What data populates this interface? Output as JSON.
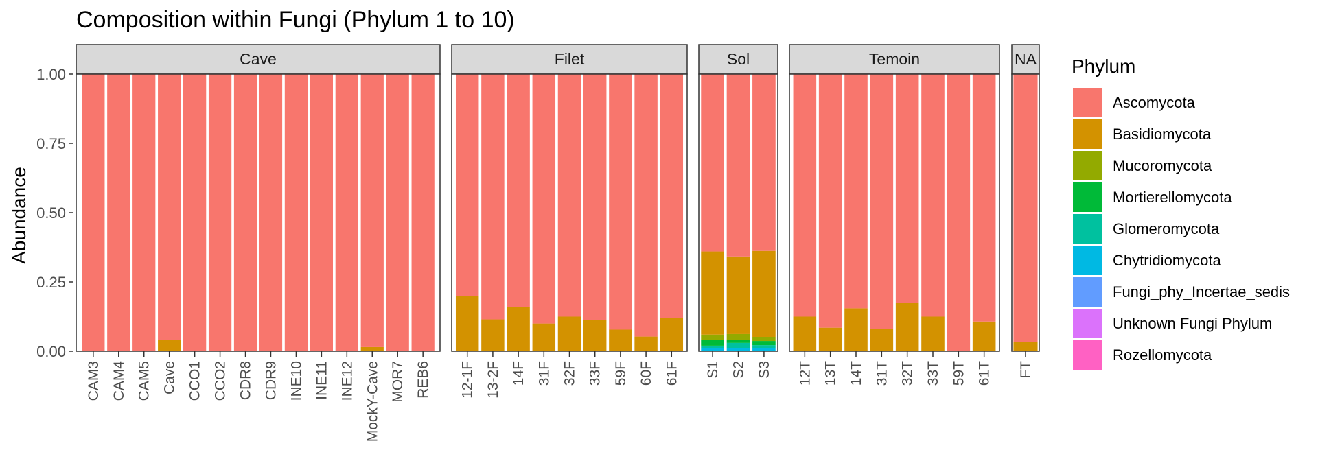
{
  "chart_data": {
    "type": "bar",
    "stacked": true,
    "title": "Composition within Fungi (Phylum 1 to 10)",
    "ylabel": "Abundance",
    "xlabel": "",
    "ylim": [
      0,
      1
    ],
    "yticks": [
      "0.00",
      "0.25",
      "0.50",
      "0.75",
      "1.00"
    ],
    "legend": {
      "title": "Phylum",
      "position": "right",
      "entries": [
        {
          "name": "Ascomycota",
          "color": "#F8766D"
        },
        {
          "name": "Basidiomycota",
          "color": "#D39200"
        },
        {
          "name": "Mucoromycota",
          "color": "#93AA00"
        },
        {
          "name": "Mortierellomycota",
          "color": "#00BA38"
        },
        {
          "name": "Glomeromycota",
          "color": "#00C19F"
        },
        {
          "name": "Chytridiomycota",
          "color": "#00B9E3"
        },
        {
          "name": "Fungi_phy_Incertae_sedis",
          "color": "#619CFF"
        },
        {
          "name": "Unknown Fungi Phylum",
          "color": "#DB72FB"
        },
        {
          "name": "Rozellomycota",
          "color": "#FF61C3"
        }
      ]
    },
    "facets": [
      {
        "label": "Cave",
        "samples": [
          {
            "name": "CAM3",
            "values": {
              "Basidiomycota": 0.0
            }
          },
          {
            "name": "CAM4",
            "values": {
              "Basidiomycota": 0.0
            }
          },
          {
            "name": "CAM5",
            "values": {
              "Basidiomycota": 0.0
            }
          },
          {
            "name": "Cave",
            "values": {
              "Basidiomycota": 0.04
            }
          },
          {
            "name": "CCO1",
            "values": {
              "Basidiomycota": 0.0
            }
          },
          {
            "name": "CCO2",
            "values": {
              "Basidiomycota": 0.0
            }
          },
          {
            "name": "CDR8",
            "values": {
              "Basidiomycota": 0.0
            }
          },
          {
            "name": "CDR9",
            "values": {
              "Basidiomycota": 0.0
            }
          },
          {
            "name": "INE10",
            "values": {
              "Basidiomycota": 0.0
            }
          },
          {
            "name": "INE11",
            "values": {
              "Basidiomycota": 0.0
            }
          },
          {
            "name": "INE12",
            "values": {
              "Basidiomycota": 0.0
            }
          },
          {
            "name": "MockY-Cave",
            "values": {
              "Basidiomycota": 0.015
            }
          },
          {
            "name": "MOR7",
            "values": {
              "Basidiomycota": 0.0
            }
          },
          {
            "name": "REB6",
            "values": {
              "Basidiomycota": 0.0
            }
          }
        ]
      },
      {
        "label": "Filet",
        "samples": [
          {
            "name": "12-1F",
            "values": {
              "Basidiomycota": 0.2
            }
          },
          {
            "name": "13-2F",
            "values": {
              "Basidiomycota": 0.115
            }
          },
          {
            "name": "14F",
            "values": {
              "Basidiomycota": 0.16
            }
          },
          {
            "name": "31F",
            "values": {
              "Basidiomycota": 0.1
            }
          },
          {
            "name": "32F",
            "values": {
              "Basidiomycota": 0.125
            }
          },
          {
            "name": "33F",
            "values": {
              "Basidiomycota": 0.113
            }
          },
          {
            "name": "59F",
            "values": {
              "Basidiomycota": 0.078
            }
          },
          {
            "name": "60F",
            "values": {
              "Basidiomycota": 0.053
            }
          },
          {
            "name": "61F",
            "values": {
              "Basidiomycota": 0.12
            }
          }
        ]
      },
      {
        "label": "Sol",
        "samples": [
          {
            "name": "S1",
            "values": {
              "Basidiomycota": 0.3,
              "Mucoromycota": 0.02,
              "Mortierellomycota": 0.02,
              "Glomeromycota": 0.008,
              "Chytridiomycota": 0.012
            }
          },
          {
            "name": "S2",
            "values": {
              "Basidiomycota": 0.28,
              "Mucoromycota": 0.02,
              "Mortierellomycota": 0.012,
              "Glomeromycota": 0.02,
              "Chytridiomycota": 0.01
            }
          },
          {
            "name": "S3",
            "values": {
              "Basidiomycota": 0.31,
              "Mucoromycota": 0.015,
              "Mortierellomycota": 0.015,
              "Glomeromycota": 0.012,
              "Chytridiomycota": 0.01
            }
          }
        ]
      },
      {
        "label": "Temoin",
        "samples": [
          {
            "name": "12T",
            "values": {
              "Basidiomycota": 0.125
            }
          },
          {
            "name": "13T",
            "values": {
              "Basidiomycota": 0.085
            }
          },
          {
            "name": "14T",
            "values": {
              "Basidiomycota": 0.155
            }
          },
          {
            "name": "31T",
            "values": {
              "Basidiomycota": 0.08
            }
          },
          {
            "name": "32T",
            "values": {
              "Basidiomycota": 0.175
            }
          },
          {
            "name": "33T",
            "values": {
              "Basidiomycota": 0.125
            }
          },
          {
            "name": "59T",
            "values": {
              "Basidiomycota": 0.0
            }
          },
          {
            "name": "61T",
            "values": {
              "Basidiomycota": 0.107
            }
          }
        ]
      },
      {
        "label": "NA",
        "samples": [
          {
            "name": "FT",
            "values": {
              "Basidiomycota": 0.033
            }
          }
        ]
      }
    ]
  }
}
